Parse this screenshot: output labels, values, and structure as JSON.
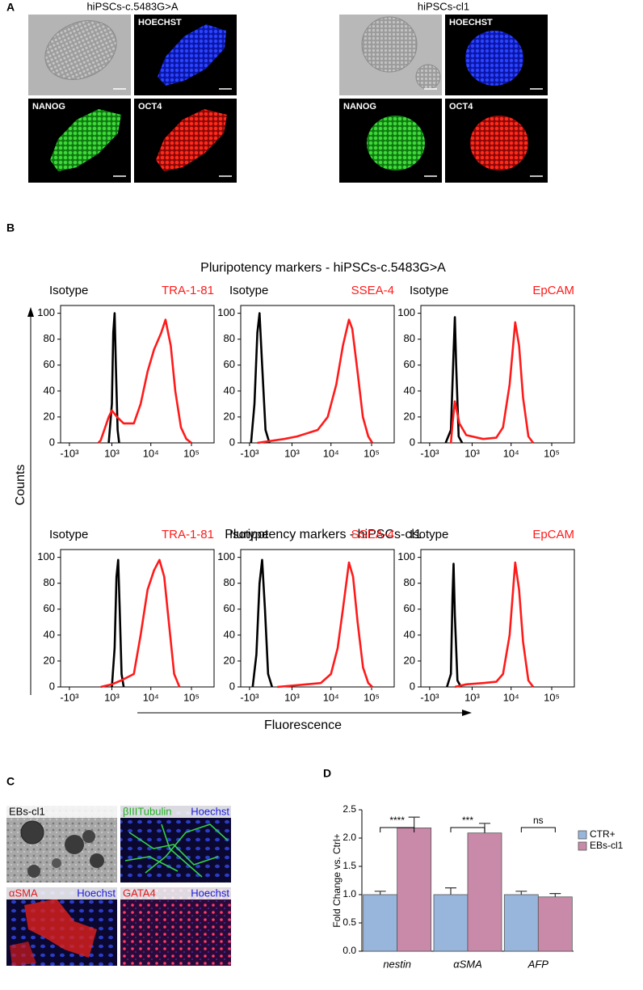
{
  "figure": {
    "panel_labels": [
      "A",
      "B",
      "C",
      "D"
    ],
    "panel_a": [
      {
        "title": "hiPSCs-c.5483G>A",
        "stains": [
          "HOECHST",
          "NANOG",
          "OCT4"
        ]
      },
      {
        "title": "hiPSCs-cl1",
        "stains": [
          "HOECHST",
          "NANOG",
          "OCT4"
        ]
      }
    ],
    "panel_b": {
      "row_titles": [
        "Pluripotency markers - hiPSCs-c.5483G>A",
        "Pluripotency markers - hiPSCs-cl1"
      ],
      "y_title": "Counts",
      "x_title": "Fluorescence"
    },
    "panel_c": {
      "eb_label": "EBs-cl1",
      "stains": [
        [
          "βIIITubulin",
          "Hoechst"
        ],
        [
          "αSMA",
          "Hoechst"
        ],
        [
          "GATA4",
          "Hoechst"
        ]
      ]
    }
  },
  "chart_data": [
    {
      "type": "line",
      "xscale": "biexponential",
      "xlim": [
        -1750,
        360000
      ],
      "ylim": [
        0,
        106
      ],
      "xticks": [
        {
          "value": -1000,
          "label": "-10³"
        },
        {
          "value": 1000,
          "label": "10³"
        },
        {
          "value": 10000,
          "label": "10⁴"
        },
        {
          "value": 100000,
          "label": "10⁵"
        }
      ],
      "yticks": [
        0,
        20,
        40,
        60,
        80,
        100
      ],
      "series": [
        {
          "name": "Isotype",
          "color": "#000000",
          "x": [
            800,
            1000,
            1100,
            1200,
            1300,
            1450,
            1600
          ],
          "values": [
            0,
            30,
            85,
            100,
            60,
            10,
            0
          ]
        },
        {
          "name": "TRA-1-81",
          "color": "#ff1a1a",
          "x": [
            300,
            400,
            800,
            1000,
            1400,
            2100,
            3800,
            5600,
            8300,
            12000,
            18000,
            23000,
            31000,
            40000,
            55000,
            75000,
            100000
          ],
          "values": [
            0,
            2,
            20,
            25,
            20,
            15,
            15,
            30,
            55,
            72,
            85,
            95,
            75,
            40,
            12,
            3,
            0
          ]
        }
      ]
    },
    {
      "type": "line",
      "xscale": "biexponential",
      "xlim": [
        -1750,
        360000
      ],
      "ylim": [
        0,
        106
      ],
      "xticks": [
        {
          "value": -1000,
          "label": "-10³"
        },
        {
          "value": 1000,
          "label": "10³"
        },
        {
          "value": 10000,
          "label": "10⁴"
        },
        {
          "value": 100000,
          "label": "10⁵"
        }
      ],
      "yticks": [
        0,
        20,
        40,
        60,
        80,
        100
      ],
      "series": [
        {
          "name": "Isotype",
          "color": "#000000",
          "x": [
            -900,
            -700,
            -550,
            -450,
            -350,
            -200,
            -50
          ],
          "values": [
            0,
            30,
            85,
            100,
            65,
            10,
            0
          ]
        },
        {
          "name": "SSEA-4",
          "color": "#ff1a1a",
          "x": [
            -550,
            550,
            1400,
            4700,
            8300,
            13500,
            19700,
            27700,
            33500,
            45000,
            61000,
            83000,
            104000
          ],
          "values": [
            0,
            3,
            5,
            10,
            20,
            45,
            75,
            95,
            88,
            55,
            20,
            5,
            0
          ]
        }
      ]
    },
    {
      "type": "line",
      "xscale": "biexponential",
      "xlim": [
        -1750,
        360000
      ],
      "ylim": [
        0,
        106
      ],
      "xticks": [
        {
          "value": -1000,
          "label": "-10³"
        },
        {
          "value": 1000,
          "label": "10³"
        },
        {
          "value": 10000,
          "label": "10⁴"
        },
        {
          "value": 100000,
          "label": "10⁵"
        }
      ],
      "yticks": [
        0,
        20,
        40,
        60,
        80,
        100
      ],
      "series": [
        {
          "name": "Isotype",
          "color": "#000000",
          "x": [
            -200,
            0,
            100,
            150,
            200,
            300,
            450
          ],
          "values": [
            0,
            10,
            70,
            97,
            60,
            5,
            0
          ]
        },
        {
          "name": "EpCAM",
          "color": "#ff1a1a",
          "x": [
            0,
            60,
            150,
            330,
            650,
            2000,
            4300,
            6300,
            9200,
            12600,
            15700,
            19700,
            26600,
            35000
          ],
          "values": [
            0,
            15,
            32,
            15,
            6,
            3,
            4,
            12,
            45,
            93,
            75,
            35,
            5,
            0
          ]
        }
      ]
    },
    {
      "type": "line",
      "xscale": "biexponential",
      "xlim": [
        -1750,
        360000
      ],
      "ylim": [
        0,
        106
      ],
      "xticks": [
        {
          "value": -1000,
          "label": "-10³"
        },
        {
          "value": 1000,
          "label": "10³"
        },
        {
          "value": 10000,
          "label": "10⁴"
        },
        {
          "value": 100000,
          "label": "10⁵"
        }
      ],
      "yticks": [
        0,
        20,
        40,
        60,
        80,
        100
      ],
      "series": [
        {
          "name": "Isotype",
          "color": "#000000",
          "x": [
            1000,
            1200,
            1350,
            1500,
            1650,
            1850,
            2100
          ],
          "values": [
            0,
            30,
            85,
            98,
            60,
            10,
            0
          ]
        },
        {
          "name": "TRA-1-81",
          "color": "#ff1a1a",
          "x": [
            400,
            1000,
            1800,
            3800,
            5600,
            8300,
            12000,
            16300,
            21400,
            27700,
            37500,
            50800
          ],
          "values": [
            0,
            2,
            5,
            10,
            40,
            75,
            90,
            98,
            85,
            50,
            10,
            0
          ]
        }
      ]
    },
    {
      "type": "line",
      "xscale": "biexponential",
      "xlim": [
        -1750,
        360000
      ],
      "ylim": [
        0,
        106
      ],
      "xticks": [
        {
          "value": -1000,
          "label": "-10³"
        },
        {
          "value": 1000,
          "label": "10³"
        },
        {
          "value": 10000,
          "label": "10⁴"
        },
        {
          "value": 100000,
          "label": "10⁵"
        }
      ],
      "yticks": [
        0,
        20,
        40,
        60,
        80,
        100
      ],
      "series": [
        {
          "name": "Isotype",
          "color": "#000000",
          "x": [
            -800,
            -600,
            -450,
            -335,
            -220,
            -100,
            50
          ],
          "values": [
            0,
            25,
            80,
            98,
            60,
            10,
            0
          ]
        },
        {
          "name": "SSEA-4",
          "color": "#ff1a1a",
          "x": [
            250,
            5600,
            10000,
            14600,
            19700,
            27700,
            35000,
            45200,
            61400,
            83000,
            104000
          ],
          "values": [
            0,
            3,
            10,
            30,
            60,
            96,
            85,
            50,
            15,
            3,
            0
          ]
        }
      ]
    },
    {
      "type": "line",
      "xscale": "biexponential",
      "xlim": [
        -1750,
        360000
      ],
      "ylim": [
        0,
        106
      ],
      "xticks": [
        {
          "value": -1000,
          "label": "-10³"
        },
        {
          "value": 1000,
          "label": "10³"
        },
        {
          "value": 10000,
          "label": "10⁴"
        },
        {
          "value": 100000,
          "label": "10⁵"
        }
      ],
      "yticks": [
        0,
        20,
        40,
        60,
        80,
        100
      ],
      "series": [
        {
          "name": "Isotype",
          "color": "#000000",
          "x": [
            -150,
            0,
            60,
            100,
            150,
            250,
            400
          ],
          "values": [
            0,
            10,
            70,
            95,
            55,
            5,
            0
          ]
        },
        {
          "name": "EpCAM",
          "color": "#ff1a1a",
          "x": [
            150,
            650,
            2000,
            4300,
            6300,
            9200,
            12600,
            15700,
            19700,
            26600,
            35000
          ],
          "values": [
            0,
            2,
            3,
            4,
            10,
            40,
            96,
            75,
            35,
            5,
            0
          ]
        }
      ]
    },
    {
      "type": "bar",
      "categories": [
        "nestin",
        "αSMA",
        "AFP"
      ],
      "ylabel": "Fold Change vs. Ctrl+",
      "ylim": [
        0,
        2.5
      ],
      "yticks": [
        {
          "value": 0,
          "label": "0.0"
        },
        {
          "value": 0.5,
          "label": "0.5"
        },
        {
          "value": 1,
          "label": "1.0"
        },
        {
          "value": 1.5,
          "label": "1.5"
        },
        {
          "value": 2,
          "label": "2.0"
        },
        {
          "value": 2.5,
          "label": "2.5"
        }
      ],
      "series": [
        {
          "name": "CTR+",
          "color": "#98b6dc",
          "values": [
            1.0,
            1.0,
            1.0
          ],
          "errors": [
            0.06,
            0.12,
            0.06
          ]
        },
        {
          "name": "EBs-cl1",
          "color": "#c98aa9",
          "values": [
            2.18,
            2.09,
            0.96
          ],
          "errors": [
            0.19,
            0.17,
            0.06
          ]
        }
      ],
      "annotations": [
        "****",
        "***",
        "ns"
      ],
      "legend": "right"
    }
  ]
}
